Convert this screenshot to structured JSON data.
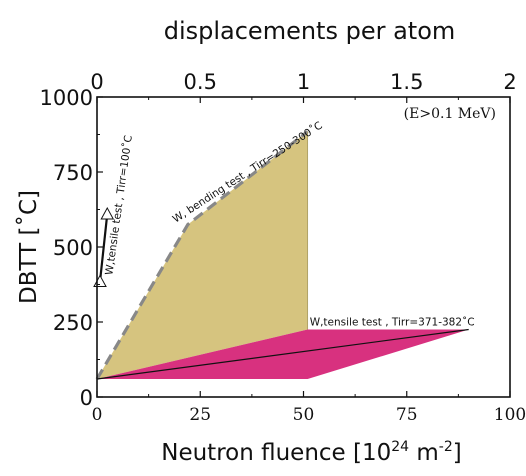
{
  "chart_data": {
    "type": "area",
    "title": "displacements per atom",
    "xlabel": "Neutron fluence [10^24 m^-2]",
    "xlabel_parts": {
      "main": "Neutron fluence [10",
      "sup1": "24",
      "mid": " m",
      "sup2": "-2",
      "end": "]"
    },
    "ylabel": "DBTT [˚C]",
    "top_axis_label": "displacements per atom",
    "xlim": [
      0,
      100
    ],
    "ylim": [
      0,
      1000
    ],
    "top_xlim": [
      0,
      2
    ],
    "x_ticks": [
      "0",
      "25",
      "50",
      "75",
      "100"
    ],
    "y_ticks": [
      "0",
      "250",
      "500",
      "750",
      "1000"
    ],
    "top_ticks": [
      "0",
      "0.5",
      "1",
      "1.5",
      "2"
    ],
    "condition_note": "(E>0.1 MeV)",
    "grid": false,
    "colors": {
      "bending": "#d6c47f",
      "tensile_high": "#d8317f",
      "outline": "#888888",
      "line": "#111111"
    },
    "series": [
      {
        "name": "W, bending test , Tirr=250-300˚C",
        "kind": "area",
        "x": [
          0,
          22,
          51,
          51,
          0
        ],
        "y": [
          60,
          575,
          885,
          225,
          60
        ]
      },
      {
        "name": "W,tensile test , Tirr=371-382˚C",
        "kind": "area",
        "x": [
          0,
          51,
          90,
          51,
          0
        ],
        "y": [
          60,
          225,
          225,
          60,
          60
        ]
      },
      {
        "name": "W,tensile test , Tirr=100˚C",
        "kind": "line",
        "x": [
          0,
          2
        ],
        "y": [
          385,
          610
        ]
      }
    ],
    "annotations": [
      {
        "text": "W, bending test , Tirr=250-300˚C"
      },
      {
        "text": "W,tensile test , Tirr=371-382˚C"
      },
      {
        "text": "W,tensile test , Tirr=100˚C"
      }
    ]
  }
}
